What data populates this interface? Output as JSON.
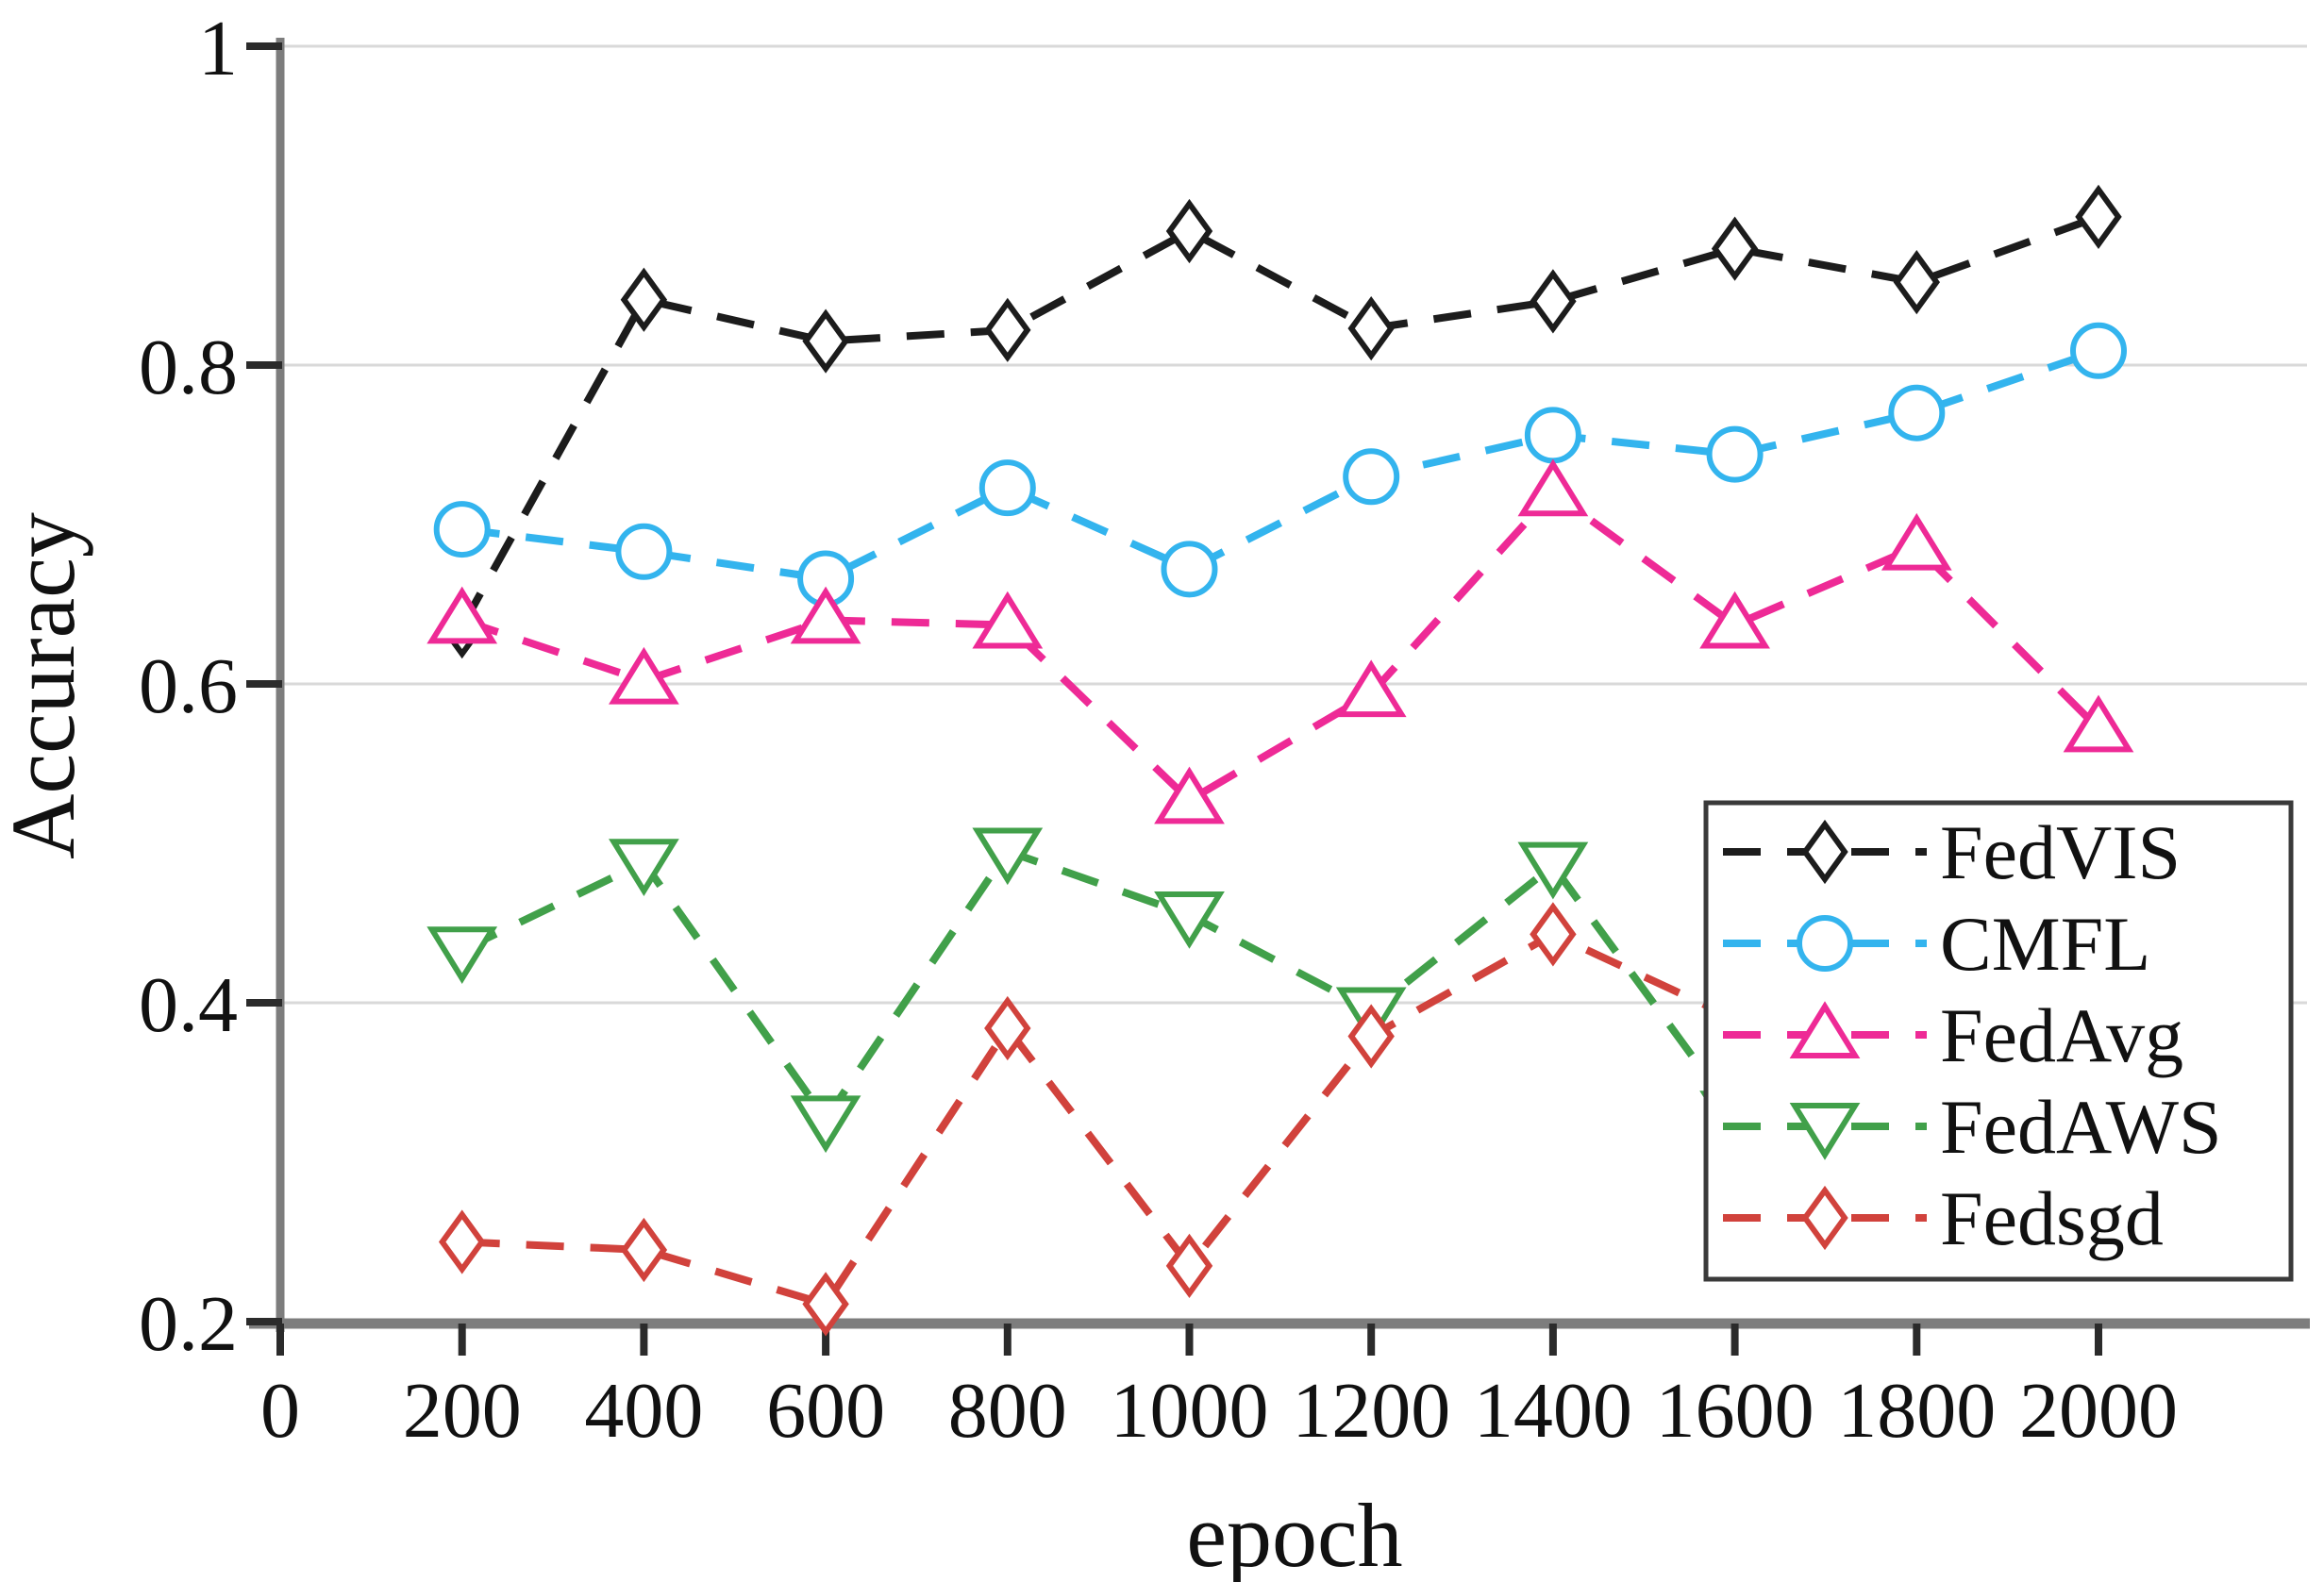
{
  "chart_data": {
    "type": "line",
    "title": "",
    "xlabel": "epoch",
    "ylabel": "Accuracy",
    "x_ticks": [
      0,
      200,
      400,
      600,
      800,
      1000,
      1200,
      1400,
      1600,
      1800,
      2000
    ],
    "y_ticks": [
      1,
      0.8,
      0.6,
      0.4,
      0.2
    ],
    "xlim": [
      0,
      2230
    ],
    "ylim": [
      0.2,
      1.0
    ],
    "grid": "horizontal-only",
    "legend_position": "lower-right",
    "line_style": "dashed",
    "x": [
      200,
      400,
      600,
      800,
      1000,
      1200,
      1400,
      1600,
      1800,
      2000
    ],
    "series": [
      {
        "name": "FedVIS",
        "color": "#1c1c1c",
        "marker": "diamond",
        "values": [
          0.636,
          0.841,
          0.815,
          0.822,
          0.884,
          0.823,
          0.84,
          0.873,
          0.852,
          0.893
        ]
      },
      {
        "name": "CMFL",
        "color": "#33b4ee",
        "marker": "circle",
        "values": [
          0.697,
          0.683,
          0.666,
          0.723,
          0.672,
          0.73,
          0.756,
          0.744,
          0.77,
          0.809
        ]
      },
      {
        "name": "FedAvg",
        "color": "#ee2a96",
        "marker": "triangle-up",
        "values": [
          0.64,
          0.602,
          0.64,
          0.637,
          0.527,
          0.594,
          0.72,
          0.637,
          0.686,
          0.572
        ]
      },
      {
        "name": "FedAWS",
        "color": "#41a04a",
        "marker": "triangle-down",
        "values": [
          0.433,
          0.488,
          0.327,
          0.495,
          0.455,
          0.395,
          0.486,
          0.33,
          null,
          null
        ]
      },
      {
        "name": "Fedsgd",
        "color": "#d1423c",
        "marker": "diamond",
        "values": [
          0.25,
          0.245,
          0.211,
          0.384,
          0.235,
          0.379,
          0.443,
          0.39,
          null,
          null
        ]
      }
    ],
    "legend": [
      "FedVIS",
      "CMFL",
      "FedAvg",
      "FedAWS",
      "Fedsgd"
    ],
    "notes": "FedAWS and Fedsgd lines descend behind the legend box after ~epoch 1500; their markers past epoch 1400 are hidden by the legend.",
    "colors": {
      "gridline": "#d9d9d9",
      "axis": "#7d7d7d",
      "tick_mark": "#2b2b2b",
      "legend_border": "#3a3a3a",
      "background": "#ffffff"
    }
  }
}
